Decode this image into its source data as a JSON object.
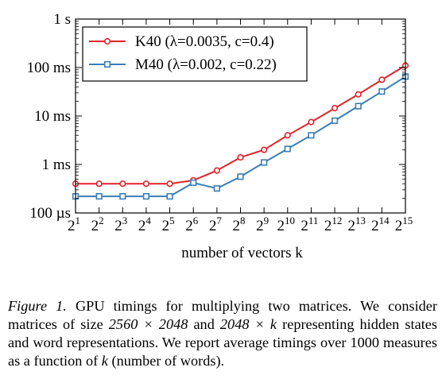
{
  "chart_data": {
    "type": "line",
    "xlabel": "number of vectors k",
    "ylabel": "",
    "x_scale": "log2",
    "y_scale": "log10",
    "x_ticks": [
      {
        "value": 2,
        "base": "2",
        "exp": "1"
      },
      {
        "value": 4,
        "base": "2",
        "exp": "2"
      },
      {
        "value": 8,
        "base": "2",
        "exp": "3"
      },
      {
        "value": 16,
        "base": "2",
        "exp": "4"
      },
      {
        "value": 32,
        "base": "2",
        "exp": "5"
      },
      {
        "value": 64,
        "base": "2",
        "exp": "6"
      },
      {
        "value": 128,
        "base": "2",
        "exp": "7"
      },
      {
        "value": 256,
        "base": "2",
        "exp": "8"
      },
      {
        "value": 512,
        "base": "2",
        "exp": "9"
      },
      {
        "value": 1024,
        "base": "2",
        "exp": "10"
      },
      {
        "value": 2048,
        "base": "2",
        "exp": "11"
      },
      {
        "value": 4096,
        "base": "2",
        "exp": "12"
      },
      {
        "value": 8192,
        "base": "2",
        "exp": "13"
      },
      {
        "value": 16384,
        "base": "2",
        "exp": "14"
      },
      {
        "value": 32768,
        "base": "2",
        "exp": "15"
      }
    ],
    "y_ticks": [
      {
        "value": 0.0001,
        "label": "100 µs"
      },
      {
        "value": 0.001,
        "label": "1 ms"
      },
      {
        "value": 0.01,
        "label": "10 ms"
      },
      {
        "value": 0.1,
        "label": "100 ms"
      },
      {
        "value": 1,
        "label": "1 s"
      }
    ],
    "xlim": [
      2,
      32768
    ],
    "ylim": [
      0.0001,
      1
    ],
    "legend_position": "top-left",
    "x": [
      2,
      4,
      8,
      16,
      32,
      64,
      128,
      256,
      512,
      1024,
      2048,
      4096,
      8192,
      16384,
      32768
    ],
    "series": [
      {
        "name": "K40  (λ=0.0035, c=0.4)",
        "color": "#e3242b",
        "marker": "circle",
        "values": [
          0.0004,
          0.0004,
          0.0004,
          0.0004,
          0.0004,
          0.00047,
          0.00075,
          0.0014,
          0.002,
          0.004,
          0.0075,
          0.0145,
          0.028,
          0.056,
          0.11
        ]
      },
      {
        "name": "M40  (λ=0.002, c=0.22)",
        "color": "#3a7fb6",
        "marker": "square",
        "values": [
          0.00022,
          0.00022,
          0.00022,
          0.00022,
          0.00022,
          0.00042,
          0.00032,
          0.00056,
          0.0011,
          0.0021,
          0.004,
          0.008,
          0.016,
          0.032,
          0.065
        ]
      }
    ]
  },
  "caption": {
    "label": "Figure 1.",
    "line1": " GPU timings for multiplying two matrices. We consider",
    "line2_a": "matrices of size ",
    "line2_m1": "2560 × 2048",
    "line2_b": " and ",
    "line2_m2": "2048 × k",
    "line2_c": " representing hidden",
    "line3": "states and word representations. We report average timings over",
    "line4_a": "1000 measures as a function of ",
    "line4_m": "k",
    "line4_b": " (number of words)."
  }
}
